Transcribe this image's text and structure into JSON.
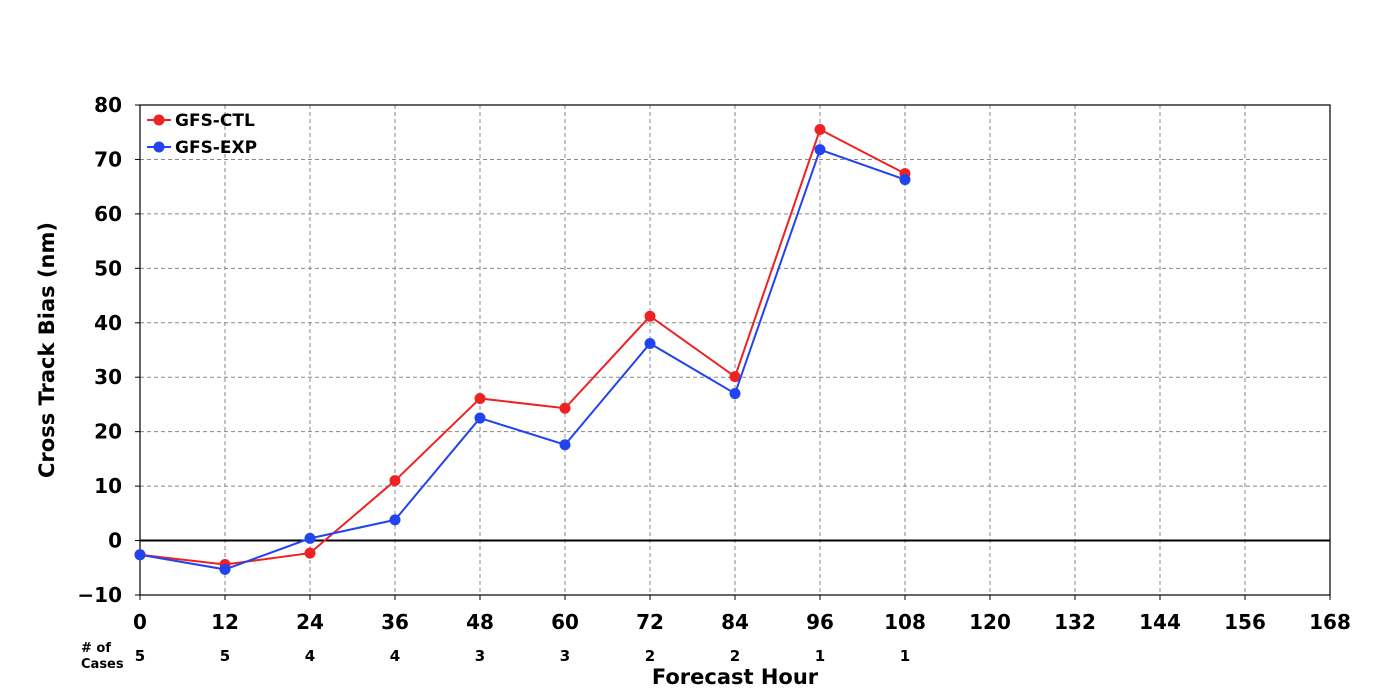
{
  "chart_data": {
    "type": "line",
    "title": "",
    "xlabel": "Forecast Hour",
    "ylabel": "Cross Track Bias (nm)",
    "xlim": [
      0,
      168
    ],
    "ylim": [
      -10,
      80
    ],
    "x_ticks": [
      0,
      12,
      24,
      36,
      48,
      60,
      72,
      84,
      96,
      108,
      120,
      132,
      144,
      156,
      168
    ],
    "y_ticks": [
      -10,
      0,
      10,
      20,
      30,
      40,
      50,
      60,
      70,
      80
    ],
    "y_tick_labels": [
      "−10",
      "0",
      "10",
      "20",
      "30",
      "40",
      "50",
      "60",
      "70",
      "80"
    ],
    "grid": true,
    "zero_line": true,
    "legend_position": "top-left",
    "cases_header": [
      "# of",
      "Cases"
    ],
    "cases": [
      {
        "x": 0,
        "n": "5"
      },
      {
        "x": 12,
        "n": "5"
      },
      {
        "x": 24,
        "n": "4"
      },
      {
        "x": 36,
        "n": "4"
      },
      {
        "x": 48,
        "n": "3"
      },
      {
        "x": 60,
        "n": "3"
      },
      {
        "x": 72,
        "n": "2"
      },
      {
        "x": 84,
        "n": "2"
      },
      {
        "x": 96,
        "n": "1"
      },
      {
        "x": 108,
        "n": "1"
      }
    ],
    "series": [
      {
        "name": "GFS-CTL",
        "color": "#ee2222",
        "x": [
          0,
          12,
          24,
          36,
          48,
          60,
          72,
          84,
          96,
          108
        ],
        "values": [
          -2.6,
          -4.4,
          -2.3,
          11.0,
          26.1,
          24.3,
          41.2,
          30.1,
          75.5,
          67.4
        ]
      },
      {
        "name": "GFS-EXP",
        "color": "#2244ee",
        "x": [
          0,
          12,
          24,
          36,
          48,
          60,
          72,
          84,
          96,
          108
        ],
        "values": [
          -2.6,
          -5.3,
          0.4,
          3.8,
          22.5,
          17.6,
          36.2,
          27.0,
          71.8,
          66.3
        ]
      }
    ]
  }
}
